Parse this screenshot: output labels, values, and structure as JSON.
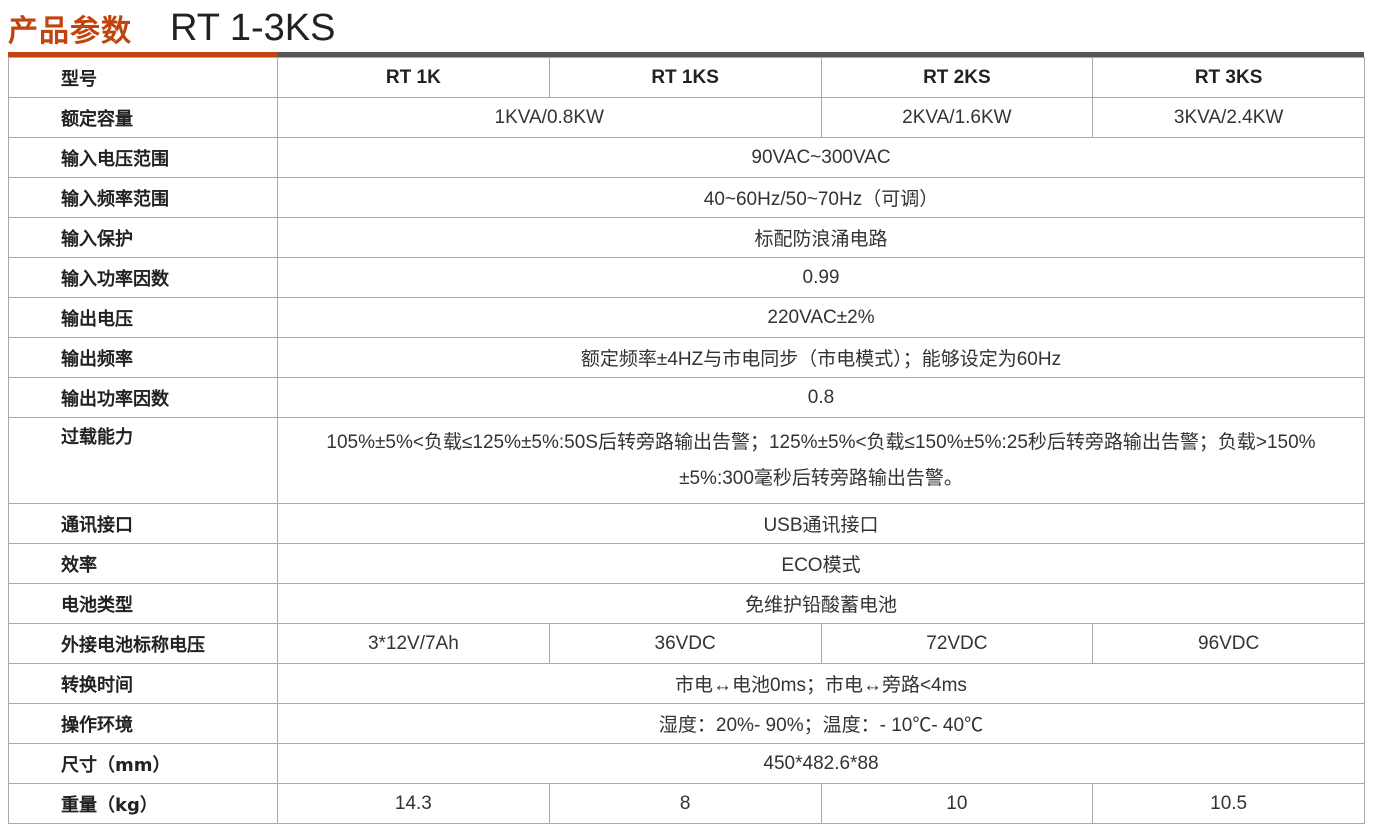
{
  "header": {
    "title_cn": "产品参数",
    "model": "RT 1-3KS",
    "accent": "#c1440e"
  },
  "table": {
    "rows": [
      {
        "label": "型号",
        "cells": [
          {
            "text": "RT 1K",
            "span": 1
          },
          {
            "text": "RT 1KS",
            "span": 1
          },
          {
            "text": "RT 2KS",
            "span": 1
          },
          {
            "text": "RT 3KS",
            "span": 1
          }
        ],
        "head": true
      },
      {
        "label": "额定容量",
        "cells": [
          {
            "text": "1KVA/0.8KW",
            "span": 2
          },
          {
            "text": "2KVA/1.6KW",
            "span": 1
          },
          {
            "text": "3KVA/2.4KW",
            "span": 1
          }
        ]
      },
      {
        "label": "输入电压范围",
        "cells": [
          {
            "text": "90VAC~300VAC",
            "span": 4
          }
        ]
      },
      {
        "label": "输入频率范围",
        "cells": [
          {
            "text": "40~60Hz/50~70Hz（可调）",
            "span": 4
          }
        ]
      },
      {
        "label": "输入保护",
        "cells": [
          {
            "text": "标配防浪涌电路",
            "span": 4
          }
        ]
      },
      {
        "label": "输入功率因数",
        "cells": [
          {
            "text": "0.99",
            "span": 4
          }
        ]
      },
      {
        "label": "输出电压",
        "cells": [
          {
            "text": "220VAC±2%",
            "span": 4
          }
        ]
      },
      {
        "label": "输出频率",
        "cells": [
          {
            "text": "额定频率±4HZ与市电同步（市电模式）；能够设定为60Hz",
            "span": 4
          }
        ]
      },
      {
        "label": "输出功率因数",
        "cells": [
          {
            "text": "0.8",
            "span": 4
          }
        ]
      },
      {
        "label": "过载能力",
        "cells": [
          {
            "text": "105%±5%<负载≤125%±5%:50S后转旁路输出告警；125%±5%<负载≤150%±5%:25秒后转旁路输出告警；负载>150%±5%:300毫秒后转旁路输出告警。",
            "span": 4
          }
        ],
        "tall": true
      },
      {
        "label": "通讯接口",
        "cells": [
          {
            "text": "USB通讯接口",
            "span": 4
          }
        ]
      },
      {
        "label": "效率",
        "cells": [
          {
            "text": "ECO模式",
            "span": 4
          }
        ]
      },
      {
        "label": "电池类型",
        "cells": [
          {
            "text": "免维护铅酸蓄电池",
            "span": 4
          }
        ]
      },
      {
        "label": "外接电池标称电压",
        "cells": [
          {
            "text": "3*12V/7Ah",
            "span": 1
          },
          {
            "text": "36VDC",
            "span": 1
          },
          {
            "text": "72VDC",
            "span": 1
          },
          {
            "text": "96VDC",
            "span": 1
          }
        ]
      },
      {
        "label": "转换时间",
        "cells": [
          {
            "text": "市电↔电池0ms；市电↔旁路<4ms",
            "span": 4
          }
        ]
      },
      {
        "label": "操作环境",
        "cells": [
          {
            "text": "湿度：20%- 90%；温度：- 10℃- 40℃",
            "span": 4
          }
        ]
      },
      {
        "label": "尺寸（mm）",
        "cells": [
          {
            "text": "450*482.6*88",
            "span": 4
          }
        ]
      },
      {
        "label": "重量（kg）",
        "cells": [
          {
            "text": "14.3",
            "span": 1
          },
          {
            "text": "8",
            "span": 1
          },
          {
            "text": "10",
            "span": 1
          },
          {
            "text": "10.5",
            "span": 1
          }
        ]
      }
    ]
  }
}
